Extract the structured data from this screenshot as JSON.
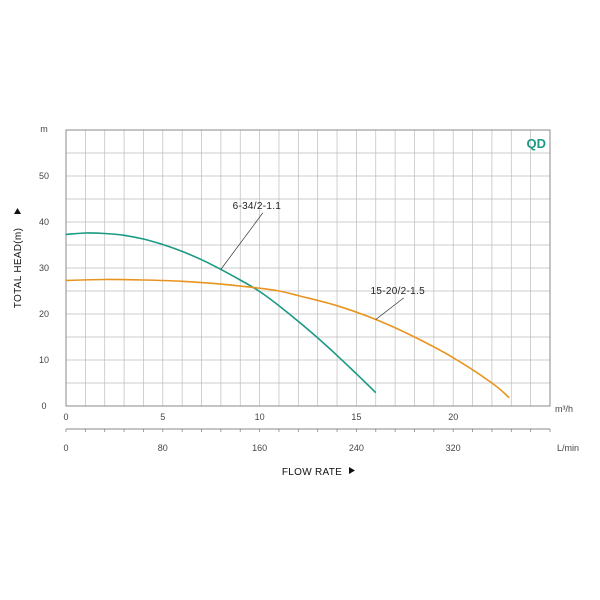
{
  "chart_data": {
    "type": "line",
    "brand": "QD",
    "colors": {
      "brand": "#1a9a84",
      "grid": "#bdbdbd",
      "frame": "#888888"
    },
    "xlabel": "FLOW RATE",
    "ylabel": "TOTAL HEAD(m)",
    "x_unit": "m³/h",
    "x_unit_secondary": "L/min",
    "y_unit": "m",
    "xlim": [
      0,
      25
    ],
    "ylim": [
      0,
      60
    ],
    "x_ticks": [
      "0",
      "5",
      "10",
      "15",
      "20"
    ],
    "x_ticks_secondary": [
      "0",
      "80",
      "160",
      "240",
      "320"
    ],
    "y_ticks": [
      "0",
      "10",
      "20",
      "30",
      "40",
      "50"
    ],
    "grid": true,
    "series": [
      {
        "name": "6-34/2-1.1",
        "color": "#1a9a84",
        "x": [
          0,
          1,
          2,
          3,
          4,
          5,
          6,
          7,
          8,
          9,
          10,
          11,
          12,
          13,
          14,
          15,
          16
        ],
        "y": [
          37.3,
          37.6,
          37.5,
          37.1,
          36.3,
          35.1,
          33.6,
          31.8,
          29.7,
          27.4,
          24.9,
          21.8,
          18.4,
          14.8,
          11.0,
          7.0,
          2.9
        ],
        "label_at": 8
      },
      {
        "name": "15-20/2-1.5",
        "color": "#e89520",
        "x": [
          0,
          2,
          4,
          6,
          8,
          10,
          11,
          12,
          14,
          16,
          18,
          20,
          22,
          22.9
        ],
        "y": [
          27.3,
          27.5,
          27.4,
          27.1,
          26.5,
          25.6,
          25.0,
          24.0,
          21.8,
          18.8,
          15.0,
          10.5,
          5.0,
          1.8
        ],
        "label_at": 16
      }
    ]
  }
}
